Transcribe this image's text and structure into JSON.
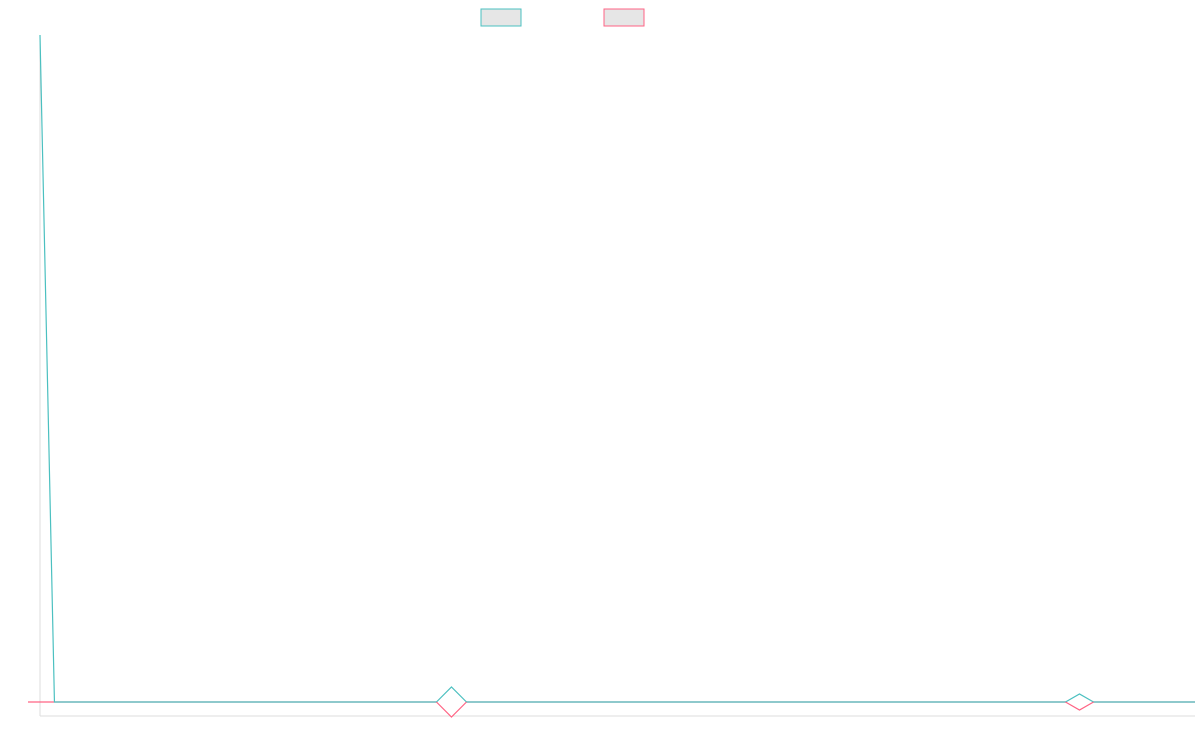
{
  "colors": {
    "series_a": "#4bc0c0",
    "series_b": "#ff6384",
    "axis": "#dddddd",
    "swatch_fill": "#e6e6e6"
  },
  "chart_data": {
    "type": "line",
    "title": "",
    "xlabel": "",
    "ylabel": "",
    "x": [
      0,
      1,
      2,
      3,
      4,
      5,
      6,
      7,
      8,
      9,
      10,
      11,
      12,
      13,
      14,
      15,
      16,
      17,
      18,
      19,
      20,
      21,
      22,
      23,
      24,
      25,
      26,
      27,
      28,
      29,
      30,
      31,
      32,
      33,
      34,
      35,
      36,
      37,
      38,
      39,
      40,
      41,
      42,
      43,
      44,
      45,
      46,
      47,
      48,
      49,
      50,
      51,
      52,
      53,
      54,
      55,
      56,
      57,
      58,
      59,
      60,
      61,
      62,
      63,
      64,
      65,
      66,
      67,
      68,
      69,
      70,
      71,
      72,
      73,
      74,
      75,
      76,
      77,
      78,
      79,
      80
    ],
    "ylim": [
      0,
      100
    ],
    "grid": false,
    "legend": "top-center",
    "series": [
      {
        "color": "#4bc0c0",
        "values": [
          100,
          0,
          0,
          0,
          0,
          0,
          0,
          0,
          0,
          0,
          0,
          0,
          0,
          0,
          0,
          0,
          0,
          0,
          0,
          0,
          0,
          0,
          0,
          0,
          0,
          0,
          0,
          0,
          0,
          0,
          0,
          0,
          0,
          0,
          0,
          0,
          0,
          0,
          0,
          0,
          0,
          0,
          0,
          0,
          0,
          0,
          0,
          0,
          0,
          0,
          0,
          0,
          0,
          0,
          0,
          0,
          0,
          0,
          0,
          0,
          0,
          0,
          0,
          0,
          0,
          0,
          0,
          0,
          0,
          0,
          0,
          0,
          0,
          0,
          0,
          0,
          0,
          0,
          0,
          0,
          0
        ],
        "markers": [
          {
            "x": 28.5,
            "size": "large"
          },
          {
            "x": 72,
            "size": "small"
          }
        ]
      },
      {
        "color": "#ff6384",
        "values": [
          0,
          0,
          0,
          0,
          0,
          0,
          0,
          0,
          0,
          0,
          0,
          0,
          0,
          0,
          0,
          0,
          0,
          0,
          0,
          0,
          0,
          0,
          0,
          0,
          0,
          0,
          0,
          0,
          0,
          0,
          0,
          0,
          0,
          0,
          0,
          0,
          0,
          0,
          0,
          0,
          0,
          0,
          0,
          0,
          0,
          0,
          0,
          0,
          0,
          0,
          0,
          0,
          0,
          0,
          0,
          0,
          0,
          0,
          0,
          0,
          0,
          0,
          0,
          0,
          0,
          0,
          0,
          0,
          0,
          0,
          0,
          0,
          0,
          0,
          0,
          0,
          0,
          0,
          0,
          0,
          0
        ],
        "markers": [
          {
            "x": 28.5,
            "size": "large"
          },
          {
            "x": 72,
            "size": "small"
          }
        ]
      }
    ]
  }
}
